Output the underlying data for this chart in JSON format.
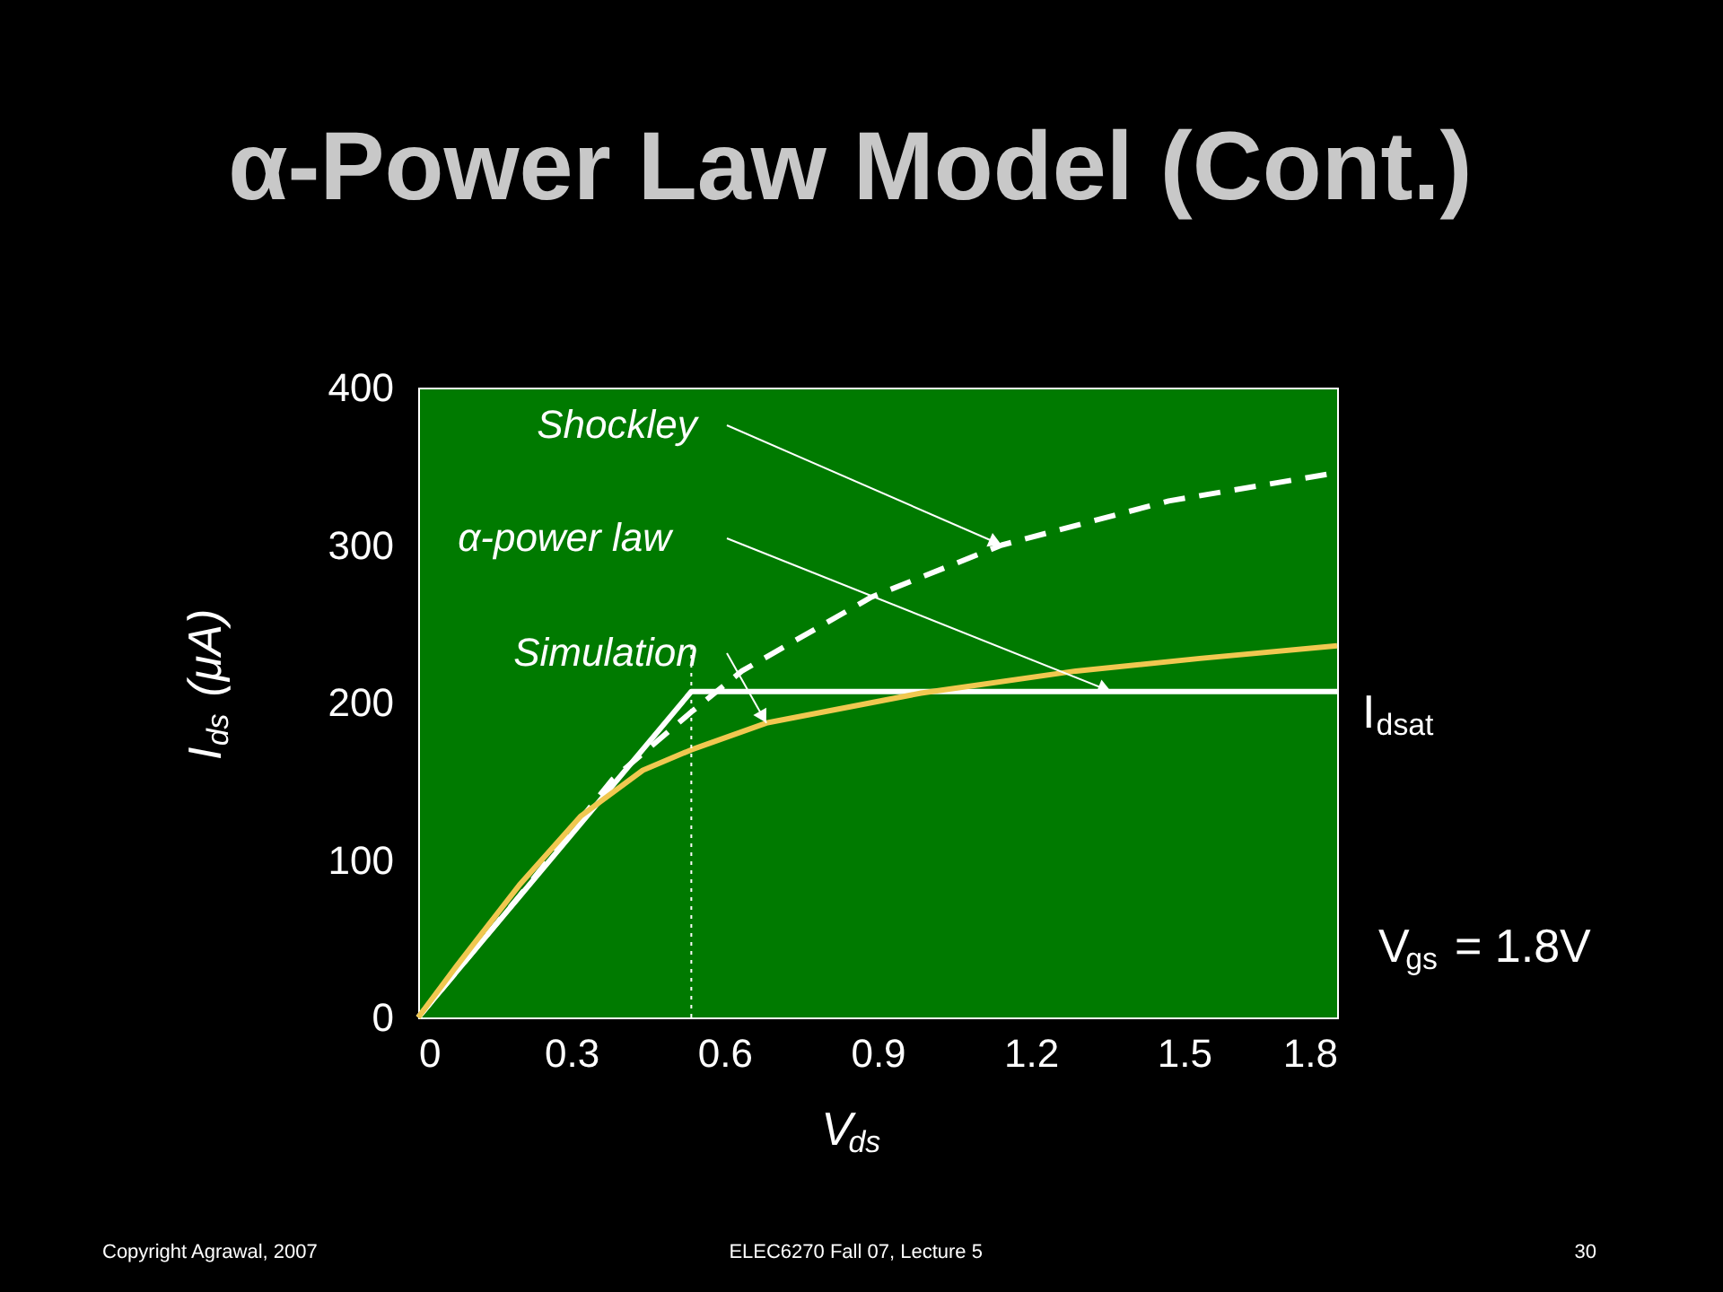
{
  "chart_data": {
    "type": "line",
    "title": "α-Power Law Model (Cont.)",
    "xlabel": "V$_{ds}$",
    "ylabel": "I$_{ds}$ (μA)",
    "xlim": [
      0,
      1.8
    ],
    "xticks": [
      0,
      0.3,
      0.6,
      0.9,
      1.2,
      1.5,
      1.8
    ],
    "ylim": [
      0,
      400
    ],
    "yticks": [
      0,
      100,
      200,
      300,
      400
    ],
    "grid": false,
    "series": [
      {
        "color": "#ffffff",
        "line_style": "dashed",
        "x": [
          0,
          0.198,
          0.38,
          0.535,
          0.634,
          0.888,
          1.143,
          1.47,
          1.8
        ],
        "values": [
          0,
          77,
          151,
          194,
          220,
          267,
          300,
          328,
          346
        ]
      },
      {
        "color": "#ffffff",
        "line_style": "solid",
        "x": [
          0,
          0.535,
          1.8
        ],
        "values": [
          0,
          207,
          207
        ]
      },
      {
        "color": "#f0c850",
        "line_style": "solid",
        "x": [
          0,
          0.076,
          0.198,
          0.319,
          0.44,
          0.535,
          0.682,
          0.985,
          1.288,
          1.531,
          1.8
        ],
        "values": [
          0,
          33,
          84,
          128,
          157,
          170,
          187,
          206,
          220,
          228,
          236
        ]
      }
    ],
    "ref_lines": [
      {
        "axis": "x",
        "value": 0.535,
        "color": "#ffffff",
        "line_style": "dotted"
      }
    ],
    "annotations": [
      {
        "text": "Shockley",
        "x": 1.143,
        "y": 300
      },
      "α-power law",
      {
        "text": "Simulation",
        "x": 0.682,
        "y": 187
      },
      {
        "text": "I$_{dsat}$",
        "x": 1.8,
        "y": 207
      },
      "V$_{gs}$ = 1.8V",
      "Copyright Agrawal, 2007",
      "ELEC6270 Fall 07, Lecture 5",
      "30"
    ]
  }
}
